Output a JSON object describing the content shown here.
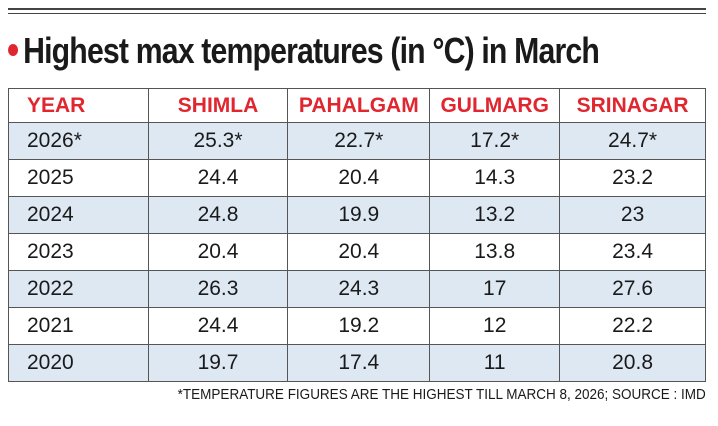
{
  "header": {
    "title": "Highest max temperatures (in °C) in March"
  },
  "table": {
    "columns": [
      "YEAR",
      "SHIMLA",
      "PAHALGAM",
      "GULMARG",
      "SRINAGAR"
    ],
    "rows": [
      [
        "2026*",
        "25.3*",
        "22.7*",
        "17.2*",
        "24.7*"
      ],
      [
        "2025",
        "24.4",
        "20.4",
        "14.3",
        "23.2"
      ],
      [
        "2024",
        "24.8",
        "19.9",
        "13.2",
        "23"
      ],
      [
        "2023",
        "20.4",
        "20.4",
        "13.8",
        "23.4"
      ],
      [
        "2022",
        "26.3",
        "24.3",
        "17",
        "27.6"
      ],
      [
        "2021",
        "24.4",
        "19.2",
        "12",
        "22.2"
      ],
      [
        "2020",
        "19.7",
        "17.4",
        "11",
        "20.8"
      ]
    ]
  },
  "footnote": "*TEMPERATURE FIGURES ARE THE HIGHEST TILL MARCH 8, 2026; SOURCE : IMD"
}
